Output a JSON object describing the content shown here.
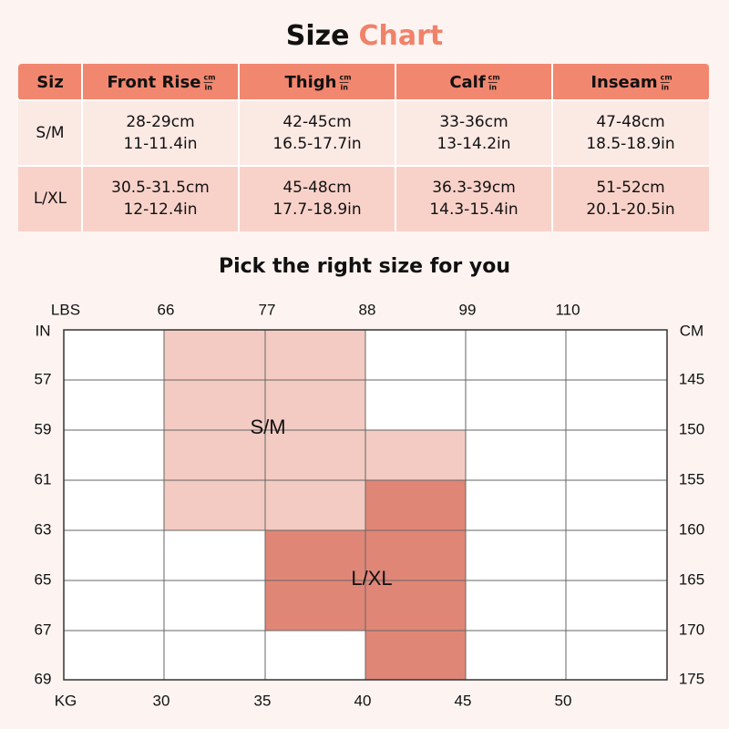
{
  "title": {
    "first": "Size",
    "second": "Chart"
  },
  "table": {
    "header": [
      {
        "label": "Siz"
      },
      {
        "label": "Front Rise",
        "units": [
          "cm",
          "in"
        ]
      },
      {
        "label": "Thigh",
        "units": [
          "cm",
          "in"
        ]
      },
      {
        "label": "Calf",
        "units": [
          "cm",
          "in"
        ]
      },
      {
        "label": "Inseam",
        "units": [
          "cm",
          "in"
        ]
      }
    ],
    "rows": [
      {
        "size": "S/M",
        "cells": [
          [
            "28-29cm",
            "11-11.4in"
          ],
          [
            "42-45cm",
            "16.5-17.7in"
          ],
          [
            "33-36cm",
            "13-14.2in"
          ],
          [
            "47-48cm",
            "18.5-18.9in"
          ]
        ]
      },
      {
        "size": "L/XL",
        "cells": [
          [
            "30.5-31.5cm",
            "12-12.4in"
          ],
          [
            "45-48cm",
            "17.7-18.9in"
          ],
          [
            "36.3-39cm",
            "14.3-15.4in"
          ],
          [
            "51-52cm",
            "20.1-20.5in"
          ]
        ]
      }
    ]
  },
  "guide": {
    "title": "Pick the right size for you",
    "top_axis": {
      "label": "LBS",
      "ticks": [
        "66",
        "77",
        "88",
        "99",
        "110"
      ]
    },
    "bottom_axis": {
      "label": "KG",
      "ticks": [
        "30",
        "35",
        "40",
        "45",
        "50"
      ]
    },
    "left_axis": {
      "label": "IN",
      "ticks": [
        "57",
        "59",
        "61",
        "63",
        "65",
        "67",
        "69"
      ]
    },
    "right_axis": {
      "label": "CM",
      "ticks": [
        "145",
        "150",
        "155",
        "160",
        "165",
        "170",
        "175"
      ]
    },
    "regions": [
      "S/M",
      "L/XL"
    ]
  }
}
